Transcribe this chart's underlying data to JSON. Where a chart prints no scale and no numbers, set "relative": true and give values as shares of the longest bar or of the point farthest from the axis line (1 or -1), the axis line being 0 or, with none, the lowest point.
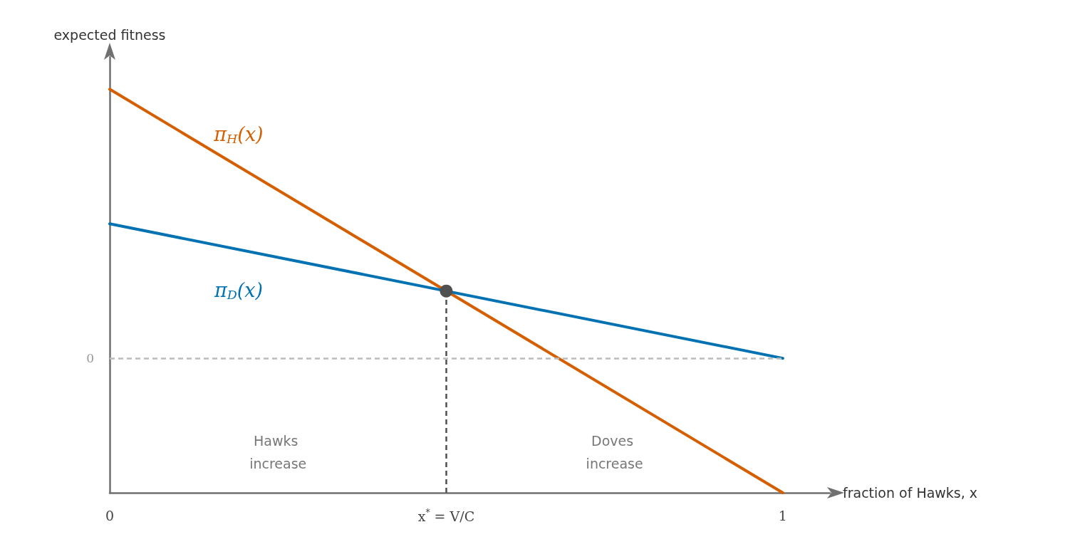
{
  "chart_data": {
    "type": "line",
    "relative": true,
    "xlabel": "fraction of Hawks, x",
    "ylabel": "expected fitness",
    "x": [
      0,
      1
    ],
    "xlim": [
      0,
      1.07
    ],
    "xticks": [
      0,
      {
        "value": 0.5,
        "label": "x$^{*}$ = V/C"
      },
      1
    ],
    "series": [
      {
        "name": "π$_{H}$(x)",
        "color": "#d55e00",
        "values": [
          1,
          -0.5
        ],
        "marker": "none"
      },
      {
        "name": "π$_{D}$(x)",
        "color": "#0072b2",
        "values": [
          0.5,
          0
        ],
        "marker": "none"
      },
      {
        "type": "scatter",
        "color": "#505050",
        "x": [
          0.5
        ],
        "values": [
          0.25
        ],
        "marker": "circle"
      }
    ],
    "ref_lines": [
      {
        "axis": "y",
        "value": 0,
        "label": "0",
        "color": "#bbbbbb",
        "line_style": "dashed"
      },
      {
        "axis": "x",
        "value": 0.5,
        "color": "#505050",
        "line_style": "dashed"
      }
    ],
    "annotations": [
      "Hawks increase",
      "Doves increase"
    ],
    "line_style": "solid",
    "grid": false,
    "legend": false
  }
}
